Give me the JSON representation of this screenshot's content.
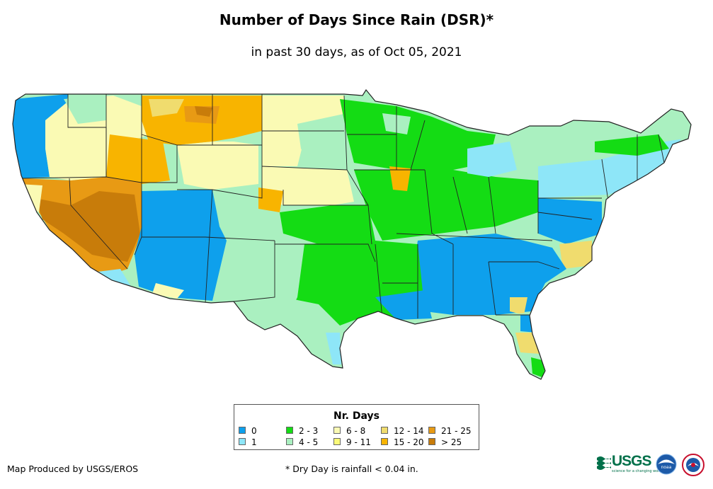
{
  "title": "Number of Days Since Rain (DSR)*",
  "subtitle": "in past 30 days, as of Oct 05, 2021",
  "legend": {
    "title": "Nr. Days",
    "items": [
      {
        "label": "0",
        "color": "#0ea0ec"
      },
      {
        "label": "1",
        "color": "#8ee6f8"
      },
      {
        "label": "2 - 3",
        "color": "#14dc14"
      },
      {
        "label": "4 - 5",
        "color": "#aaf0c0"
      },
      {
        "label": "6 - 8",
        "color": "#fafab4"
      },
      {
        "label": "9 - 11",
        "color": "#fafa78"
      },
      {
        "label": "12 - 14",
        "color": "#f0dc6e"
      },
      {
        "label": "15 - 20",
        "color": "#f8b400"
      },
      {
        "label": "21 - 25",
        "color": "#e89a14"
      },
      {
        "label": "> 25",
        "color": "#c87c0a"
      }
    ]
  },
  "credit": "Map Produced by USGS/EROS",
  "footnote": "* Dry Day is rainfall < 0.04 in.",
  "logos": {
    "usgs_text": "USGS",
    "usgs_tagline": "science for a changing world",
    "noaa_text": "noaa"
  }
}
